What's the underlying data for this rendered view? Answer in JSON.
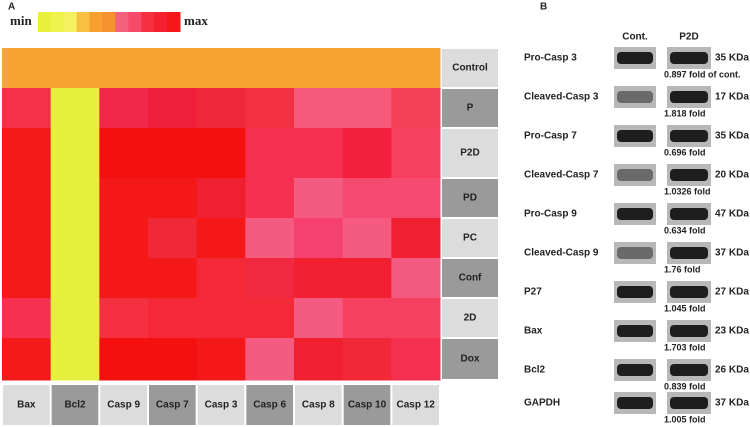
{
  "panel_a": {
    "label": "A",
    "legend": {
      "min": "min",
      "max": "max",
      "colors": [
        "#e8f03c",
        "#eef24a",
        "#f5f060",
        "#f7c040",
        "#f7a030",
        "#f79030",
        "#f5607a",
        "#f54a6a",
        "#f53040",
        "#f52030",
        "#f51818"
      ]
    },
    "rows": [
      "Control",
      "P",
      "P2D",
      "PD",
      "PC",
      "Conf",
      "2D",
      "Dox"
    ],
    "columns": [
      "Bax",
      "Bcl2",
      "Casp 9",
      "Casp 7",
      "Casp 3",
      "Casp 6",
      "Casp 8",
      "Casp 10",
      "Casp 12"
    ],
    "cells": [
      [
        "#f7a433",
        "#f7a433",
        "#f7a433",
        "#f7a433",
        "#f7a433",
        "#f7a433",
        "#f7a433",
        "#f7a433",
        "#f7a433"
      ],
      [
        "#f5304a",
        "#e6f03c",
        "#f2284a",
        "#f0203c",
        "#f0283c",
        "#f23040",
        "#f55a7a",
        "#f55a7a",
        "#f5405a"
      ],
      [
        "#f51a1a",
        "#e6f03c",
        "#f51010",
        "#f51010",
        "#f51010",
        "#f53050",
        "#f53050",
        "#f52040",
        "#f54060"
      ],
      [
        "#f51a1a",
        "#e6f03c",
        "#f51818",
        "#f51818",
        "#f02030",
        "#f53050",
        "#f55a80",
        "#f54a70",
        "#f54a70"
      ],
      [
        "#f51a1a",
        "#e6f03c",
        "#f51818",
        "#f02838",
        "#f51818",
        "#f55a80",
        "#f54070",
        "#f55a80",
        "#f02030"
      ],
      [
        "#f51a1a",
        "#e6f03c",
        "#f51818",
        "#f51818",
        "#f52838",
        "#f02840",
        "#f02030",
        "#f02030",
        "#f55a80"
      ],
      [
        "#f53050",
        "#e6f03c",
        "#f53040",
        "#f52838",
        "#f52838",
        "#f52838",
        "#f55a80",
        "#f54060",
        "#f54060"
      ],
      [
        "#f51a1a",
        "#e6f03c",
        "#f51010",
        "#f51010",
        "#f51818",
        "#f55a80",
        "#f02030",
        "#f02838",
        "#f53050"
      ]
    ]
  },
  "panel_b": {
    "label": "B",
    "lanes": [
      "Cont.",
      "P2D"
    ],
    "blots": [
      {
        "protein": "Pro-Casp 3",
        "size": "35 KDa",
        "fold": "0.897 fold of cont."
      },
      {
        "protein": "Cleaved-Casp 3",
        "size": "17 KDa",
        "fold": "1.818 fold"
      },
      {
        "protein": "Pro-Casp 7",
        "size": "35 KDa",
        "fold": "0.696 fold"
      },
      {
        "protein": "Cleaved-Casp 7",
        "size": "20 KDa",
        "fold": "1.0326 fold"
      },
      {
        "protein": "Pro-Casp 9",
        "size": "47 KDa",
        "fold": "0.634 fold"
      },
      {
        "protein": "Cleaved-Casp 9",
        "size": "37 KDa",
        "fold": "1.76 fold"
      },
      {
        "protein": "P27",
        "size": "27 KDa",
        "fold": "1.045 fold"
      },
      {
        "protein": "Bax",
        "size": "23 KDa",
        "fold": "1.703 fold"
      },
      {
        "protein": "Bcl2",
        "size": "26 KDa",
        "fold": "0.839 fold"
      },
      {
        "protein": "GAPDH",
        "size": "37 KDa",
        "fold": "1.005 fold"
      }
    ]
  }
}
